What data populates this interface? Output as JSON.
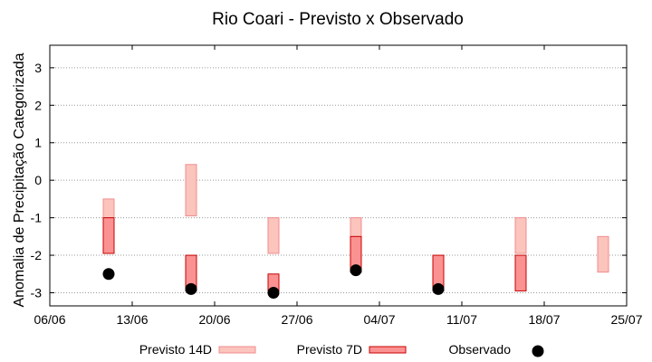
{
  "chart_data": {
    "type": "range-bar + scatter",
    "title": "Rio Coari - Previsto x Observado",
    "xlabel": "",
    "ylabel": "Anomalia de Precipitação Categorizada",
    "xlim": [
      "2013-06-06",
      "2013-07-25"
    ],
    "ylim": [
      -3.35,
      3.6
    ],
    "x_ticks": [
      {
        "date": "2013-06-06",
        "label": "06/06"
      },
      {
        "date": "2013-06-13",
        "label": "13/06"
      },
      {
        "date": "2013-06-20",
        "label": "20/06"
      },
      {
        "date": "2013-06-27",
        "label": "27/06"
      },
      {
        "date": "2013-07-04",
        "label": "04/07"
      },
      {
        "date": "2013-07-11",
        "label": "11/07"
      },
      {
        "date": "2013-07-18",
        "label": "18/07"
      },
      {
        "date": "2013-07-25",
        "label": "25/07"
      }
    ],
    "y_ticks": [
      3,
      2,
      1,
      0,
      -1,
      -2,
      -3
    ],
    "y_tick_labels": [
      "3",
      "2",
      "1",
      "0",
      "-1",
      "-2",
      "-3"
    ],
    "grid": "horizontal dotted",
    "legend_position": "bottom",
    "series": [
      {
        "name": "Previsto 14D",
        "kind": "range",
        "fill": "#fbc4bd",
        "stroke": "#f08d8d",
        "points": [
          {
            "x": "2013-06-11",
            "low": -1.0,
            "high": -0.5
          },
          {
            "x": "2013-06-18",
            "low": -0.95,
            "high": 0.42
          },
          {
            "x": "2013-06-25",
            "low": -1.95,
            "high": -1.0
          },
          {
            "x": "2013-07-02",
            "low": -1.5,
            "high": -1.0
          },
          {
            "x": "2013-07-16",
            "low": -1.95,
            "high": -1.0
          },
          {
            "x": "2013-07-23",
            "low": -2.45,
            "high": -1.5
          }
        ]
      },
      {
        "name": "Previsto 7D",
        "kind": "range",
        "fill": "#fb9292",
        "stroke": "#c80000",
        "points": [
          {
            "x": "2013-06-11",
            "low": -1.95,
            "high": -1.0
          },
          {
            "x": "2013-06-18",
            "low": -2.95,
            "high": -2.0
          },
          {
            "x": "2013-06-25",
            "low": -2.95,
            "high": -2.5
          },
          {
            "x": "2013-07-02",
            "low": -2.45,
            "high": -1.5
          },
          {
            "x": "2013-07-09",
            "low": -2.95,
            "high": -2.0
          },
          {
            "x": "2013-07-16",
            "low": -2.95,
            "high": -2.0
          }
        ]
      },
      {
        "name": "Observado",
        "kind": "scatter",
        "color": "#000000",
        "points": [
          {
            "x": "2013-06-11",
            "y": -2.5
          },
          {
            "x": "2013-06-18",
            "y": -2.9
          },
          {
            "x": "2013-06-25",
            "y": -3.0
          },
          {
            "x": "2013-07-02",
            "y": -2.4
          },
          {
            "x": "2013-07-09",
            "y": -2.9
          }
        ]
      }
    ]
  }
}
